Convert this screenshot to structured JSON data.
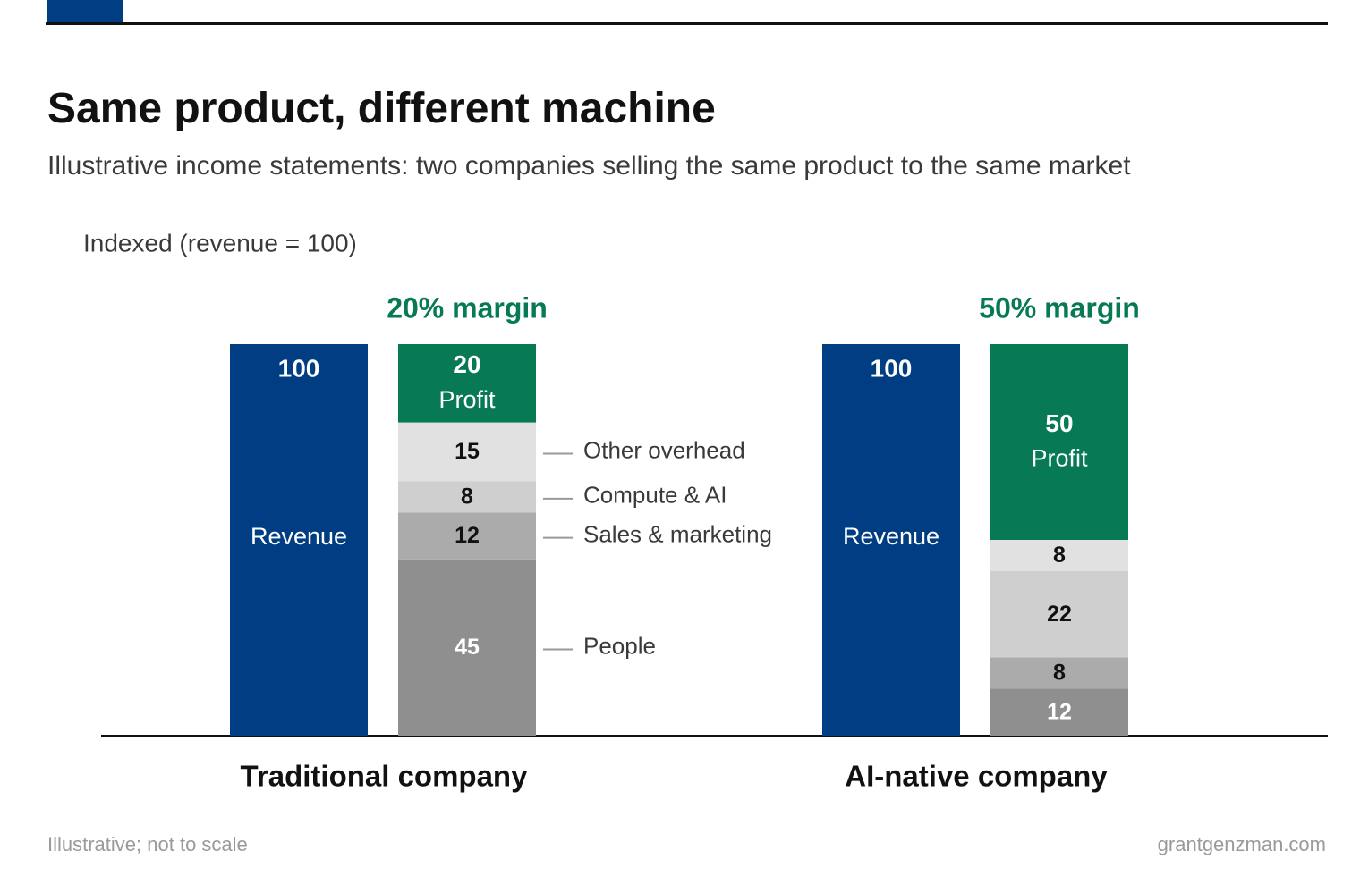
{
  "title": "Same product, different machine",
  "subtitle": "Illustrative income statements: two companies selling the same product to the same market",
  "footer": {
    "note": "Illustrative; not to scale",
    "source": "grantgenzman.com"
  },
  "colors": {
    "accent": "#003d82",
    "revenue": "#003d82",
    "profit": "#077a55",
    "other_overhead": "#e1e1e1",
    "compute_ai": "#cfcfcf",
    "sales_marketing": "#ababab",
    "people": "#8f8f8f",
    "axis": "#111111",
    "leader": "#9a9a9a"
  },
  "chart_data": {
    "type": "bar",
    "stacked": true,
    "ylabel": "Indexed (revenue = 100)",
    "ylim": [
      0,
      100
    ],
    "groups": [
      {
        "name": "Traditional company",
        "margin_label": "20% margin",
        "revenue": {
          "value": 100,
          "label": "Revenue"
        },
        "stack": [
          {
            "name": "People",
            "value": 45,
            "shade": "people"
          },
          {
            "name": "Sales & marketing",
            "value": 12,
            "shade": "sales_marketing"
          },
          {
            "name": "Compute & AI",
            "value": 8,
            "shade": "compute_ai"
          },
          {
            "name": "Other overhead",
            "value": 15,
            "shade": "other_overhead"
          },
          {
            "name": "Profit",
            "value": 20,
            "shade": "profit",
            "label": "Profit"
          }
        ],
        "show_legend_labels": true
      },
      {
        "name": "AI-native company",
        "margin_label": "50% margin",
        "revenue": {
          "value": 100,
          "label": "Revenue"
        },
        "stack": [
          {
            "name": "People",
            "value": 12,
            "shade": "people"
          },
          {
            "name": "Sales & marketing",
            "value": 8,
            "shade": "sales_marketing"
          },
          {
            "name": "Compute & AI",
            "value": 22,
            "shade": "compute_ai"
          },
          {
            "name": "Other overhead",
            "value": 8,
            "shade": "other_overhead"
          },
          {
            "name": "Profit",
            "value": 50,
            "shade": "profit",
            "label": "Profit"
          }
        ],
        "show_legend_labels": false
      }
    ]
  }
}
